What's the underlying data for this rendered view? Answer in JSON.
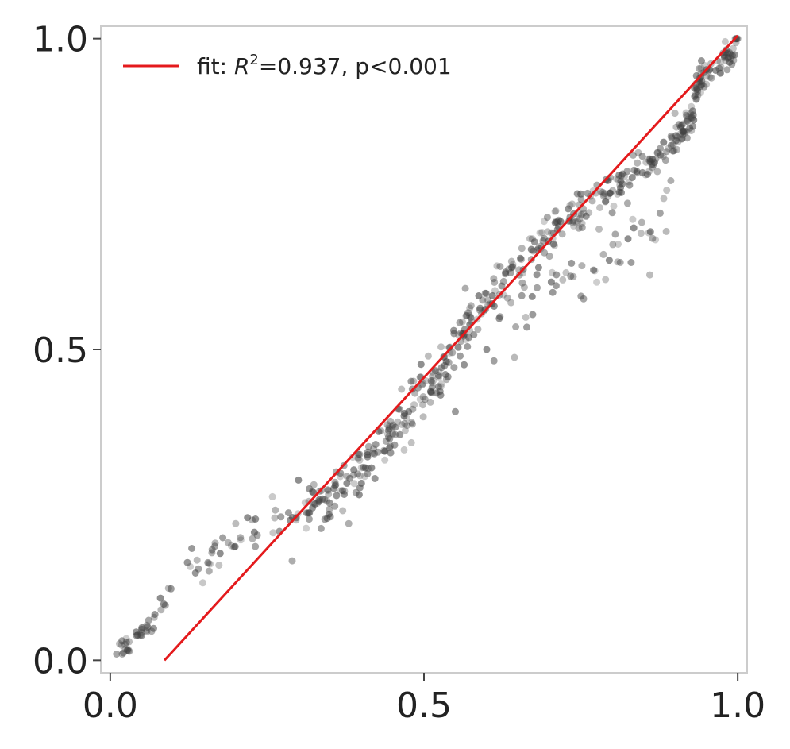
{
  "chart_data": {
    "type": "scatter",
    "title": "",
    "xlabel": "",
    "ylabel": "",
    "xlim": [
      -0.015,
      1.015
    ],
    "ylim": [
      -0.02,
      1.02
    ],
    "xticks": [
      0.0,
      0.5,
      1.0
    ],
    "yticks": [
      0.0,
      0.5,
      1.0
    ],
    "xtick_labels": [
      "0.0",
      "0.5",
      "1.0"
    ],
    "ytick_labels": [
      "0.0",
      "0.5",
      "1.0"
    ],
    "grid": false,
    "legend_position": "top-left",
    "colors": {
      "points": "#404040",
      "fit_line": "#e41a1c",
      "spine": "#cccccc"
    },
    "fit": {
      "label_prefix": "fit: ",
      "label_stat": "R",
      "label_exponent": "2",
      "label_suffix": "=0.937, p<0.001",
      "slope": 1.1,
      "intercept": -0.095
    },
    "point_model": {
      "count": 620,
      "seed": 7,
      "x_range": [
        0.01,
        1.0
      ],
      "noise_scale": 0.05
    },
    "points_sample": [
      [
        0.01,
        0.01
      ],
      [
        0.03,
        0.03
      ],
      [
        0.05,
        0.04
      ],
      [
        0.08,
        0.1
      ],
      [
        0.13,
        0.18
      ],
      [
        0.2,
        0.22
      ],
      [
        0.29,
        0.16
      ],
      [
        0.3,
        0.29
      ],
      [
        0.38,
        0.22
      ],
      [
        0.41,
        0.3
      ],
      [
        0.48,
        0.35
      ],
      [
        0.52,
        0.43
      ],
      [
        0.55,
        0.4
      ],
      [
        0.6,
        0.5
      ],
      [
        0.62,
        0.55
      ],
      [
        0.66,
        0.6
      ],
      [
        0.7,
        0.65
      ],
      [
        0.75,
        0.75
      ],
      [
        0.8,
        0.72
      ],
      [
        0.84,
        0.8
      ],
      [
        0.86,
        0.62
      ],
      [
        0.9,
        0.88
      ],
      [
        0.95,
        0.95
      ],
      [
        1.0,
        1.0
      ]
    ]
  }
}
